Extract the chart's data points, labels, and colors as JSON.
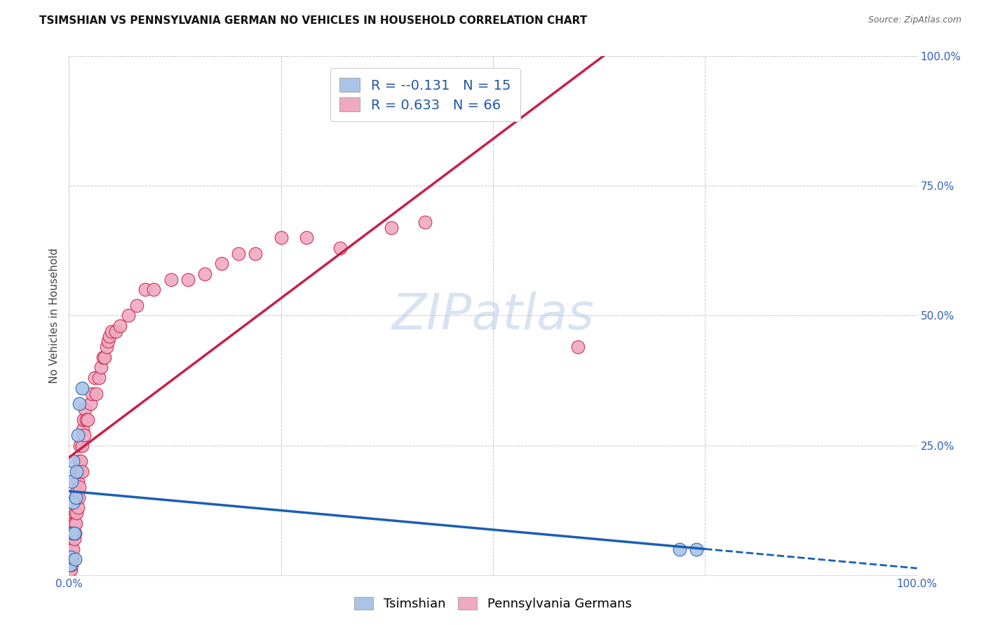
{
  "title": "TSIMSHIAN VS PENNSYLVANIA GERMAN NO VEHICLES IN HOUSEHOLD CORRELATION CHART",
  "source": "Source: ZipAtlas.com",
  "ylabel": "No Vehicles in Household",
  "watermark": "ZIPatlas",
  "legend_r_tsimshian": "-0.131",
  "legend_n_tsimshian": "15",
  "legend_r_penn": "0.633",
  "legend_n_penn": "66",
  "tsimshian_x": [
    0.001,
    0.002,
    0.003,
    0.004,
    0.005,
    0.005,
    0.006,
    0.007,
    0.008,
    0.009,
    0.01,
    0.012,
    0.015,
    0.72,
    0.74
  ],
  "tsimshian_y": [
    0.02,
    0.035,
    0.18,
    0.08,
    0.14,
    0.22,
    0.08,
    0.03,
    0.15,
    0.2,
    0.27,
    0.33,
    0.36,
    0.05,
    0.05
  ],
  "penn_x": [
    0.001,
    0.001,
    0.002,
    0.002,
    0.003,
    0.003,
    0.004,
    0.004,
    0.004,
    0.005,
    0.005,
    0.006,
    0.006,
    0.007,
    0.007,
    0.008,
    0.008,
    0.009,
    0.009,
    0.01,
    0.01,
    0.011,
    0.011,
    0.012,
    0.012,
    0.013,
    0.013,
    0.014,
    0.015,
    0.015,
    0.016,
    0.017,
    0.018,
    0.019,
    0.02,
    0.022,
    0.025,
    0.027,
    0.03,
    0.032,
    0.035,
    0.038,
    0.04,
    0.042,
    0.044,
    0.046,
    0.048,
    0.05,
    0.055,
    0.06,
    0.07,
    0.08,
    0.09,
    0.1,
    0.12,
    0.14,
    0.16,
    0.18,
    0.2,
    0.22,
    0.25,
    0.28,
    0.32,
    0.38,
    0.42,
    0.6
  ],
  "penn_y": [
    0.01,
    0.02,
    0.01,
    0.03,
    0.02,
    0.05,
    0.03,
    0.07,
    0.1,
    0.05,
    0.08,
    0.07,
    0.1,
    0.08,
    0.12,
    0.1,
    0.15,
    0.12,
    0.16,
    0.13,
    0.18,
    0.15,
    0.2,
    0.17,
    0.22,
    0.2,
    0.25,
    0.22,
    0.2,
    0.25,
    0.28,
    0.3,
    0.27,
    0.32,
    0.3,
    0.3,
    0.33,
    0.35,
    0.38,
    0.35,
    0.38,
    0.4,
    0.42,
    0.42,
    0.44,
    0.45,
    0.46,
    0.47,
    0.47,
    0.48,
    0.5,
    0.52,
    0.55,
    0.55,
    0.57,
    0.57,
    0.58,
    0.6,
    0.62,
    0.62,
    0.65,
    0.65,
    0.63,
    0.67,
    0.68,
    0.44
  ],
  "tsimshian_color": "#aac4e8",
  "tsimshian_line_color": "#1a5fb4",
  "penn_color": "#f0aac0",
  "penn_line_color": "#c8204a",
  "background_color": "#ffffff",
  "grid_color": "#c8c8c8",
  "xlim": [
    0.0,
    1.0
  ],
  "ylim": [
    0.0,
    1.0
  ],
  "title_fontsize": 11,
  "axis_label_fontsize": 11,
  "tick_fontsize": 11
}
